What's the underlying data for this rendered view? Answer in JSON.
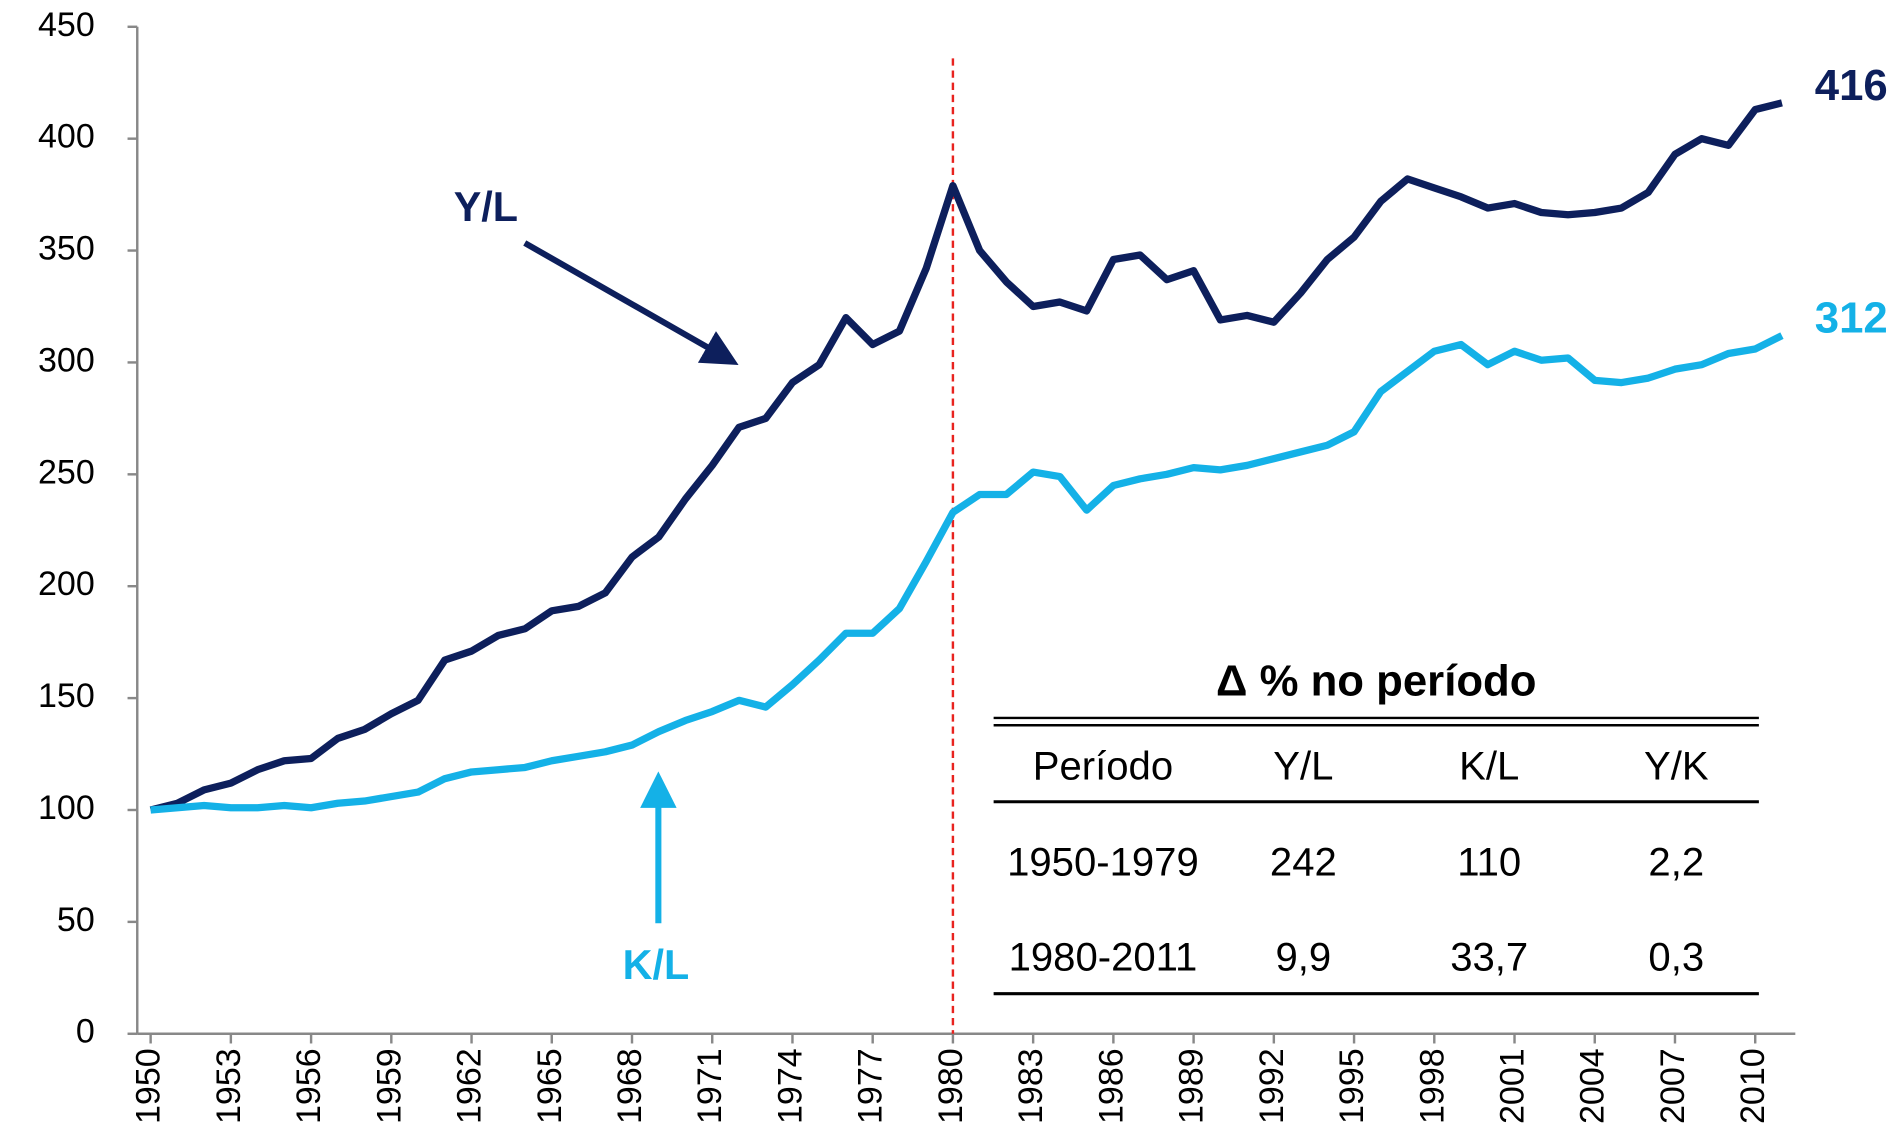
{
  "chart_data": {
    "type": "line",
    "x": [
      1950,
      1951,
      1952,
      1953,
      1954,
      1955,
      1956,
      1957,
      1958,
      1959,
      1960,
      1961,
      1962,
      1963,
      1964,
      1965,
      1966,
      1967,
      1968,
      1969,
      1970,
      1971,
      1972,
      1973,
      1974,
      1975,
      1976,
      1977,
      1978,
      1979,
      1980,
      1981,
      1982,
      1983,
      1984,
      1985,
      1986,
      1987,
      1988,
      1989,
      1990,
      1991,
      1992,
      1993,
      1994,
      1995,
      1996,
      1997,
      1998,
      1999,
      2000,
      2001,
      2002,
      2003,
      2004,
      2005,
      2006,
      2007,
      2008,
      2009,
      2010,
      2011
    ],
    "series": [
      {
        "name": "Y/L",
        "color": "#0d1f5c",
        "values": [
          100,
          103,
          109,
          112,
          118,
          122,
          123,
          132,
          136,
          143,
          149,
          167,
          171,
          178,
          181,
          189,
          191,
          197,
          213,
          222,
          239,
          254,
          271,
          275,
          291,
          299,
          320,
          308,
          314,
          342,
          379,
          350,
          336,
          325,
          327,
          323,
          346,
          348,
          337,
          341,
          319,
          321,
          318,
          331,
          346,
          356,
          372,
          382,
          378,
          374,
          369,
          371,
          367,
          366,
          367,
          369,
          376,
          393,
          400,
          397,
          413,
          416
        ]
      },
      {
        "name": "K/L",
        "color": "#14b1e7",
        "values": [
          100,
          101,
          102,
          101,
          101,
          102,
          101,
          103,
          104,
          106,
          108,
          114,
          117,
          118,
          119,
          122,
          124,
          126,
          129,
          135,
          140,
          144,
          149,
          146,
          156,
          167,
          179,
          179,
          190,
          211,
          233,
          241,
          241,
          251,
          249,
          234,
          245,
          248,
          250,
          253,
          252,
          254,
          257,
          260,
          263,
          269,
          287,
          296,
          305,
          308,
          299,
          305,
          301,
          302,
          292,
          291,
          293,
          297,
          299,
          304,
          306,
          312
        ]
      }
    ],
    "xlim": [
      1949.5,
      2011.5
    ],
    "xticks": [
      1950,
      1953,
      1956,
      1959,
      1962,
      1965,
      1968,
      1971,
      1974,
      1977,
      1980,
      1983,
      1986,
      1989,
      1992,
      1995,
      1998,
      2001,
      2004,
      2007,
      2010
    ],
    "ylim": [
      0,
      450
    ],
    "yticks": [
      0,
      50,
      100,
      150,
      200,
      250,
      300,
      350,
      400,
      450
    ],
    "reference_line_x": 1980,
    "reference_line_color": "#e8231f",
    "table": {
      "title": "Δ % no período",
      "columns": [
        "Período",
        "Y/L",
        "K/L",
        "Y/K"
      ],
      "rows": [
        [
          "1950-1979",
          "242",
          "110",
          "2,2"
        ],
        [
          "1980-2011",
          "9,9",
          "33,7",
          "0,3"
        ]
      ]
    }
  }
}
